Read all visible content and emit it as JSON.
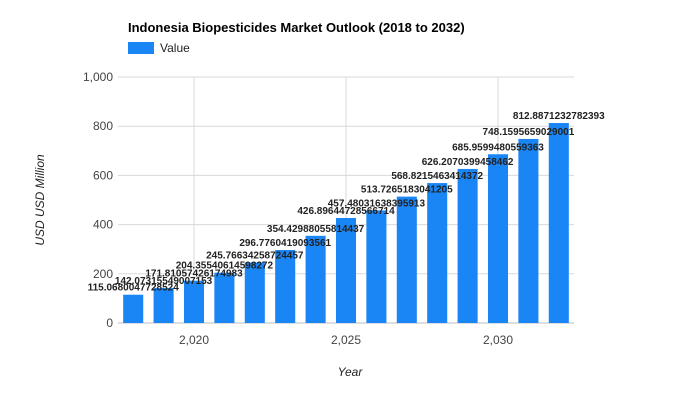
{
  "chart_data": {
    "type": "bar",
    "title": "Indonesia Biopesticides Market Outlook (2018 to 2032)",
    "xlabel": "Year",
    "ylabel": "USD USD Million",
    "legend": {
      "position": "top-left",
      "entries": [
        "Value"
      ]
    },
    "colors": {
      "bar": "#1a86f5",
      "grid": "#d9d9d9",
      "text": "#222222"
    },
    "grid": true,
    "ylim": [
      0,
      1000
    ],
    "yticks": [
      0,
      200,
      400,
      600,
      800,
      1000
    ],
    "ytick_labels": [
      "0",
      "200",
      "400",
      "600",
      "800",
      "1,000"
    ],
    "xticks": [
      2020,
      2025,
      2030
    ],
    "xtick_labels": [
      "2,020",
      "2,025",
      "2,030"
    ],
    "x": [
      2018,
      2019,
      2020,
      2021,
      2022,
      2023,
      2024,
      2025,
      2026,
      2027,
      2028,
      2029,
      2030,
      2031,
      2032
    ],
    "series": [
      {
        "name": "Value",
        "values": [
          115,
          142.07,
          171.81,
          204.36,
          245.77,
          296.78,
          354.43,
          426.9,
          457.48,
          513.73,
          568.82,
          626.21,
          685.96,
          748.16,
          812.89
        ],
        "data_labels": [
          "115.0680047728524",
          "142.07315549007153",
          "171.81057426174983",
          "204.35540614598272",
          "245.76634258724457",
          "296.7760419093561",
          "354.42988055814437",
          "426.89644728566714",
          "457.48031638395913",
          "513.7265183041205",
          "568.8215463414372",
          "626.2070399458462",
          "685.9599480559363",
          "748.1595659029001",
          "812.8871232782393"
        ]
      }
    ]
  }
}
